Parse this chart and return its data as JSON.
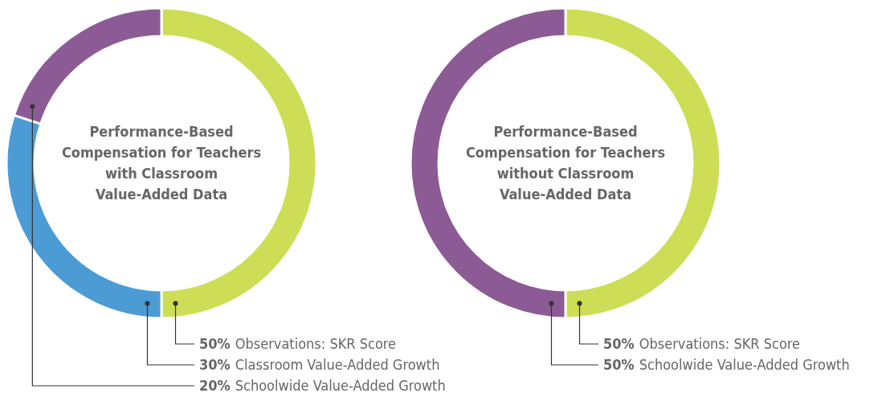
{
  "chart_data": [
    {
      "type": "donut",
      "title": "Performance-Based\nCompensation for Teachers\nwith Classroom\nValue-Added Data",
      "categories": [
        "Observations: SKR Score",
        "Classroom Value-Added Growth",
        "Schoolwide Value-Added Growth"
      ],
      "values": [
        50,
        30,
        20
      ],
      "value_labels": [
        "50%",
        "30%",
        "20%"
      ],
      "colors": [
        "#cddd55",
        "#4b9bd5",
        "#8c5a95"
      ]
    },
    {
      "type": "donut",
      "title": "Performance-Based\nCompensation for Teachers\nwithout Classroom\nValue-Added Data",
      "categories": [
        "Observations: SKR Score",
        "Schoolwide Value-Added Growth"
      ],
      "values": [
        50,
        50
      ],
      "value_labels": [
        "50%",
        "50%"
      ],
      "colors": [
        "#cddd55",
        "#8c5a95"
      ]
    }
  ]
}
